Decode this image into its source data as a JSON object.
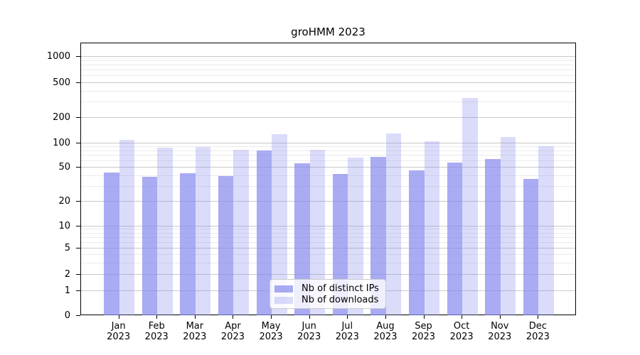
{
  "chart_data": {
    "type": "bar",
    "title": "groHMM 2023",
    "months": [
      "Jan",
      "Feb",
      "Mar",
      "Apr",
      "May",
      "Jun",
      "Jul",
      "Aug",
      "Sep",
      "Oct",
      "Nov",
      "Dec"
    ],
    "year": "2023",
    "categories": [
      "Jan 2023",
      "Feb 2023",
      "Mar 2023",
      "Apr 2023",
      "May 2023",
      "Jun 2023",
      "Jul 2023",
      "Aug 2023",
      "Sep 2023",
      "Oct 2023",
      "Nov 2023",
      "Dec 2023"
    ],
    "series": [
      {
        "name": "Nb of distinct IPs",
        "color": "rgba(132,135,238,0.70)",
        "values": [
          44,
          39,
          43,
          40,
          81,
          56,
          42,
          67,
          46,
          58,
          64,
          37
        ]
      },
      {
        "name": "Nb of downloads",
        "color": "rgba(132,135,238,0.29)",
        "values": [
          110,
          88,
          89,
          82,
          128,
          83,
          66,
          130,
          106,
          335,
          117,
          91
        ]
      }
    ],
    "y_axis": {
      "scale": "log (0 pinned at baseline)",
      "major_ticks": [
        0,
        1,
        2,
        5,
        10,
        20,
        50,
        100,
        200,
        500,
        1000
      ],
      "minor_gridlines": [
        3,
        4,
        6,
        7,
        8,
        9,
        30,
        40,
        60,
        70,
        80,
        90,
        300,
        400,
        600,
        700,
        800,
        900
      ]
    },
    "grid": "horizontal, major + faint minor",
    "legend_position": "lower center (inside plot)"
  },
  "colors": {
    "bar_base": "#8487ee",
    "major_grid": "#c9c9c9",
    "minor_grid": "#ebebeb",
    "axis": "#000000",
    "legend_border": "#cccccc"
  }
}
